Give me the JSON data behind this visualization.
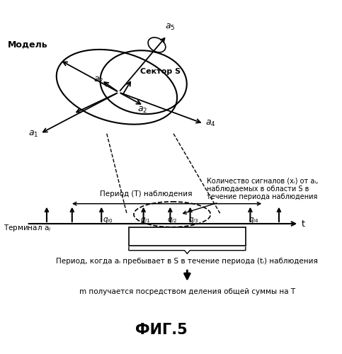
{
  "title": "ФИГ.5",
  "bg_color": "#ffffff",
  "text_color": "#000000",
  "model_label": "Модель",
  "sector_label": "Сектор S",
  "period_T_label": "Период (T) наблюдения",
  "period_S_label": "Период, когда aᵢ пребывает в S",
  "period_ti_label": "Период, когда aᵢ пребывает в S в течение периода (tᵢ) наблюдения",
  "arrow_label": "m получается посредством деления общей суммы на T",
  "annotation_line1": "Количество сигналов (xᵢ) от aᵢ,",
  "annotation_line2": "наблюдаемых в области S в",
  "annotation_line3": "течение периода наблюдения",
  "terminal_label": "Терминал aᵢ",
  "t_label": "t"
}
